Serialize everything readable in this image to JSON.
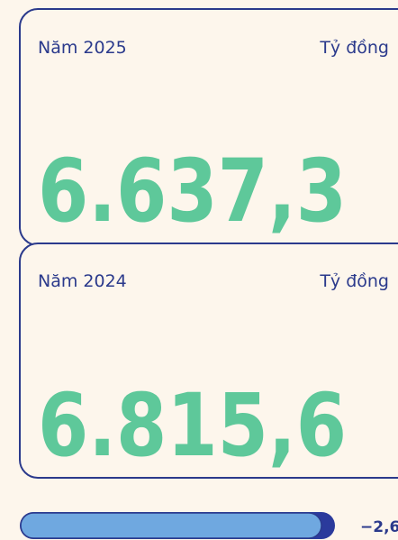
{
  "cards": [
    {
      "label": "Năm 2025",
      "unit": "Tỷ đồng",
      "value": "6.637,3"
    },
    {
      "label": "Năm 2024",
      "unit": "Tỷ đồng",
      "value": "6.815,6"
    }
  ],
  "change": {
    "value": "−2,6"
  }
}
